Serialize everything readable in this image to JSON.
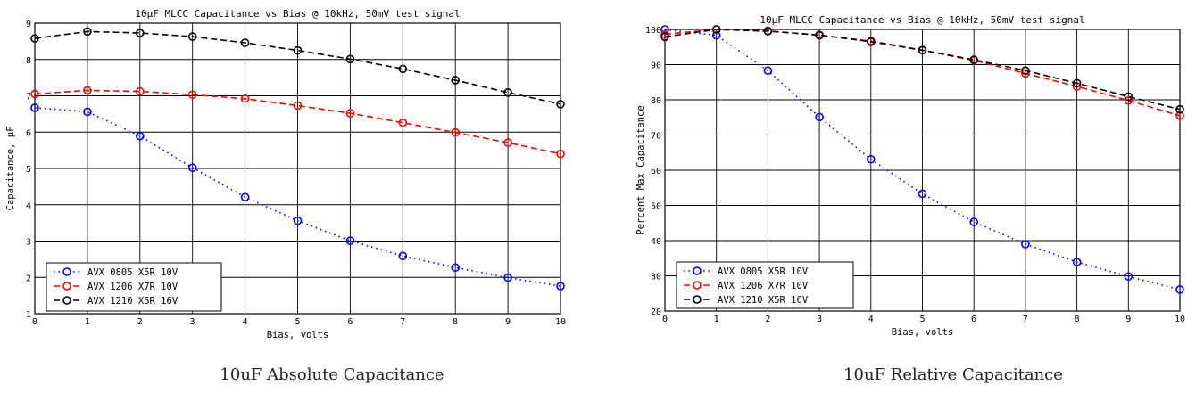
{
  "figure": {
    "captions": [
      "10uF Absolute Capacitance",
      "10uF Relative Capacitance"
    ]
  },
  "colors": {
    "blue": "#0000ff",
    "red": "#ff0000",
    "black": "#000000",
    "grid": "#000000"
  },
  "chart_data": [
    {
      "type": "line",
      "title": "10μF MLCC Capacitance vs Bias @ 10kHz, 50mV test signal",
      "xlabel": "Bias, volts",
      "ylabel": "Capacitance, μF",
      "xlim": [
        0,
        10
      ],
      "ylim": [
        1,
        9
      ],
      "xticks": [
        "0",
        "1",
        "2",
        "3",
        "4",
        "5",
        "6",
        "7",
        "8",
        "9",
        "10"
      ],
      "yticks": [
        "1",
        "2",
        "3",
        "4",
        "5",
        "6",
        "7",
        "8",
        "9"
      ],
      "grid": true,
      "legend_position": "bottom-left",
      "x": [
        0,
        1,
        2,
        3,
        4,
        5,
        6,
        7,
        8,
        9,
        10
      ],
      "series": [
        {
          "name": "AVX 0805 X5R 10V",
          "color": "blue",
          "style": "dotted",
          "values": [
            6.67,
            6.56,
            5.89,
            5.02,
            4.21,
            3.56,
            3.01,
            2.59,
            2.27,
            1.99,
            1.76
          ]
        },
        {
          "name": "AVX 1206 X7R 10V",
          "color": "red",
          "style": "dashed",
          "values": [
            7.05,
            7.15,
            7.12,
            7.03,
            6.92,
            6.73,
            6.52,
            6.26,
            5.99,
            5.71,
            5.4
          ]
        },
        {
          "name": "AVX 1210 X5R 16V",
          "color": "black",
          "style": "dashed",
          "values": [
            8.58,
            8.77,
            8.73,
            8.63,
            8.46,
            8.25,
            8.01,
            7.74,
            7.43,
            7.09,
            6.77
          ]
        }
      ]
    },
    {
      "type": "line",
      "title": "10μF MLCC Capacitance vs Bias @ 10kHz, 50mV test signal",
      "xlabel": "Bias, volts",
      "ylabel": "Percent Max Capacitance",
      "xlim": [
        0,
        10
      ],
      "ylim": [
        20,
        100
      ],
      "xticks": [
        "0",
        "1",
        "2",
        "3",
        "4",
        "5",
        "6",
        "7",
        "8",
        "9",
        "10"
      ],
      "yticks": [
        "20",
        "30",
        "40",
        "50",
        "60",
        "70",
        "80",
        "90",
        "100"
      ],
      "grid": true,
      "legend_position": "bottom-left",
      "x": [
        0,
        1,
        2,
        3,
        4,
        5,
        6,
        7,
        8,
        9,
        10
      ],
      "series": [
        {
          "name": "AVX 0805 X5R 10V",
          "color": "blue",
          "style": "dotted",
          "values": [
            100,
            98.3,
            88.3,
            75.1,
            63.1,
            53.3,
            45.3,
            39.0,
            33.9,
            29.8,
            26.1
          ]
        },
        {
          "name": "AVX 1206 X7R 10V",
          "color": "red",
          "style": "dashed",
          "values": [
            98.6,
            100,
            99.6,
            98.3,
            96.7,
            94.1,
            91.2,
            87.5,
            83.8,
            79.8,
            75.5
          ]
        },
        {
          "name": "AVX 1210 X5R 16V",
          "color": "black",
          "style": "dashed",
          "values": [
            97.9,
            100,
            99.5,
            98.4,
            96.5,
            94.1,
            91.4,
            88.3,
            84.7,
            80.9,
            77.3
          ]
        }
      ]
    }
  ]
}
